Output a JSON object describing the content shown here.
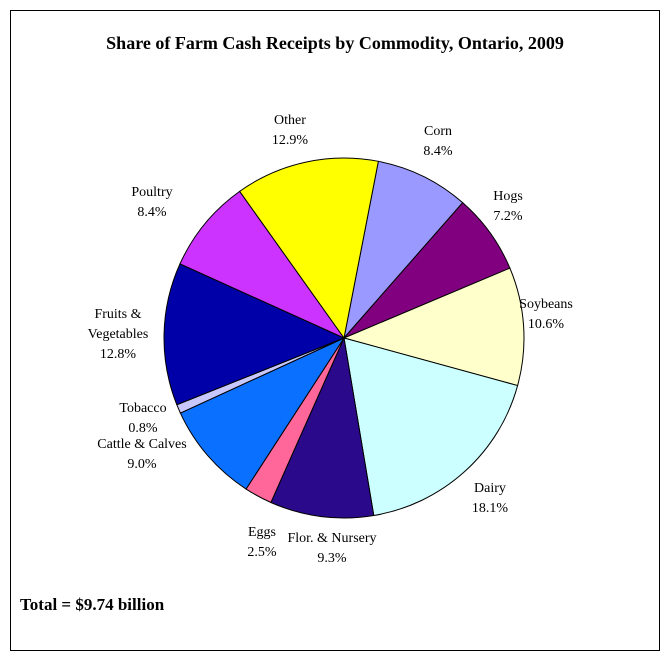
{
  "chart_data": {
    "type": "pie",
    "title": "Share of Farm Cash Receipts by Commodity, Ontario, 2009",
    "footnote": "Total = $9.74 billion",
    "slices": [
      {
        "name": "Corn",
        "pct_label": "8.4%",
        "value": 8.4,
        "color": "#9999FF"
      },
      {
        "name": "Hogs",
        "pct_label": "7.2%",
        "value": 7.2,
        "color": "#800080"
      },
      {
        "name": "Soybeans",
        "pct_label": "10.6%",
        "value": 10.6,
        "color": "#FFFFCC"
      },
      {
        "name": "Dairy",
        "pct_label": "18.1%",
        "value": 18.1,
        "color": "#CCFFFF"
      },
      {
        "name": "Flor. & Nursery",
        "pct_label": "9.3%",
        "value": 9.3,
        "color": "#2A0A8A"
      },
      {
        "name": "Eggs",
        "pct_label": "2.5%",
        "value": 2.5,
        "color": "#FF6699"
      },
      {
        "name": "Cattle & Calves",
        "pct_label": "9.0%",
        "value": 9.0,
        "color": "#0A70FF"
      },
      {
        "name": "Tobacco",
        "pct_label": "0.8%",
        "value": 0.8,
        "color": "#C8C8FF"
      },
      {
        "name": "Fruits & Vegetables",
        "pct_label": "12.8%",
        "value": 12.8,
        "color": "#0000A8"
      },
      {
        "name": "Poultry",
        "pct_label": "8.4%",
        "value": 8.4,
        "color": "#CC33FF"
      },
      {
        "name": "Other",
        "pct_label": "12.9%",
        "value": 12.9,
        "color": "#FFFF00"
      }
    ]
  }
}
